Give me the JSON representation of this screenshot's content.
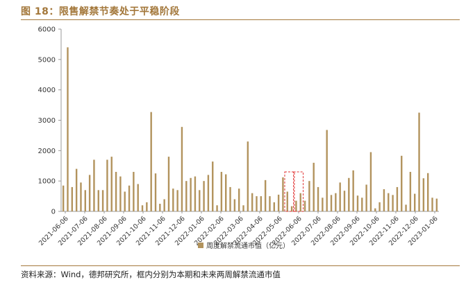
{
  "figure_title": "图 18：限售解禁节奏处于平稳阶段",
  "source_text": "资料来源：Wind，德邦研究所，框内分别为本期和未来两周解禁流通市值",
  "colors": {
    "bar": "#b2935d",
    "accent": "#a3773a",
    "highlight_box": "#e03030",
    "axis": "#888888"
  },
  "chart_data": {
    "type": "bar",
    "title": "",
    "xlabel": "",
    "ylabel": "",
    "ylim": [
      0,
      6000
    ],
    "yticks": [
      "0",
      "1000",
      "2000",
      "3000",
      "4000",
      "5000",
      "6000"
    ],
    "grid": false,
    "legend_position": "bottom",
    "series": [
      {
        "name": "周度解禁流通市值（亿元）",
        "values": [
          850,
          5400,
          800,
          1400,
          950,
          700,
          1200,
          1700,
          700,
          700,
          1700,
          1800,
          1300,
          1150,
          650,
          850,
          1300,
          900,
          200,
          300,
          3270,
          1250,
          250,
          400,
          1800,
          750,
          700,
          2780,
          1000,
          1100,
          1150,
          700,
          1000,
          1200,
          1640,
          200,
          1300,
          1220,
          800,
          400,
          750,
          200,
          2300,
          600,
          500,
          500,
          1030,
          500,
          300,
          550,
          1120,
          650,
          170,
          350,
          600,
          350,
          1000,
          1600,
          800,
          450,
          2680,
          540,
          600,
          950,
          680,
          1100,
          1350,
          520,
          450,
          880,
          1950,
          100,
          300,
          730,
          600,
          540,
          800,
          1830,
          220,
          1300,
          580,
          3250,
          1090,
          1260,
          450,
          420
        ]
      }
    ],
    "x_tick_labels": [
      "2021-06-06",
      "2021-07-06",
      "2021-08-06",
      "2021-09-06",
      "2021-10-06",
      "2021-11-06",
      "2021-12-06",
      "2022-01-06",
      "2022-02-06",
      "2022-03-06",
      "2022-04-06",
      "2022-05-06",
      "2022-06-06",
      "2022-07-06",
      "2022-08-06",
      "2022-09-06",
      "2022-10-06",
      "2022-11-06",
      "2022-12-06",
      "2023-01-06"
    ],
    "highlight_boxes": [
      {
        "from_index": 51,
        "to_index": 52,
        "top_value": 1300
      },
      {
        "from_index": 53,
        "to_index": 54,
        "top_value": 1300
      }
    ]
  }
}
